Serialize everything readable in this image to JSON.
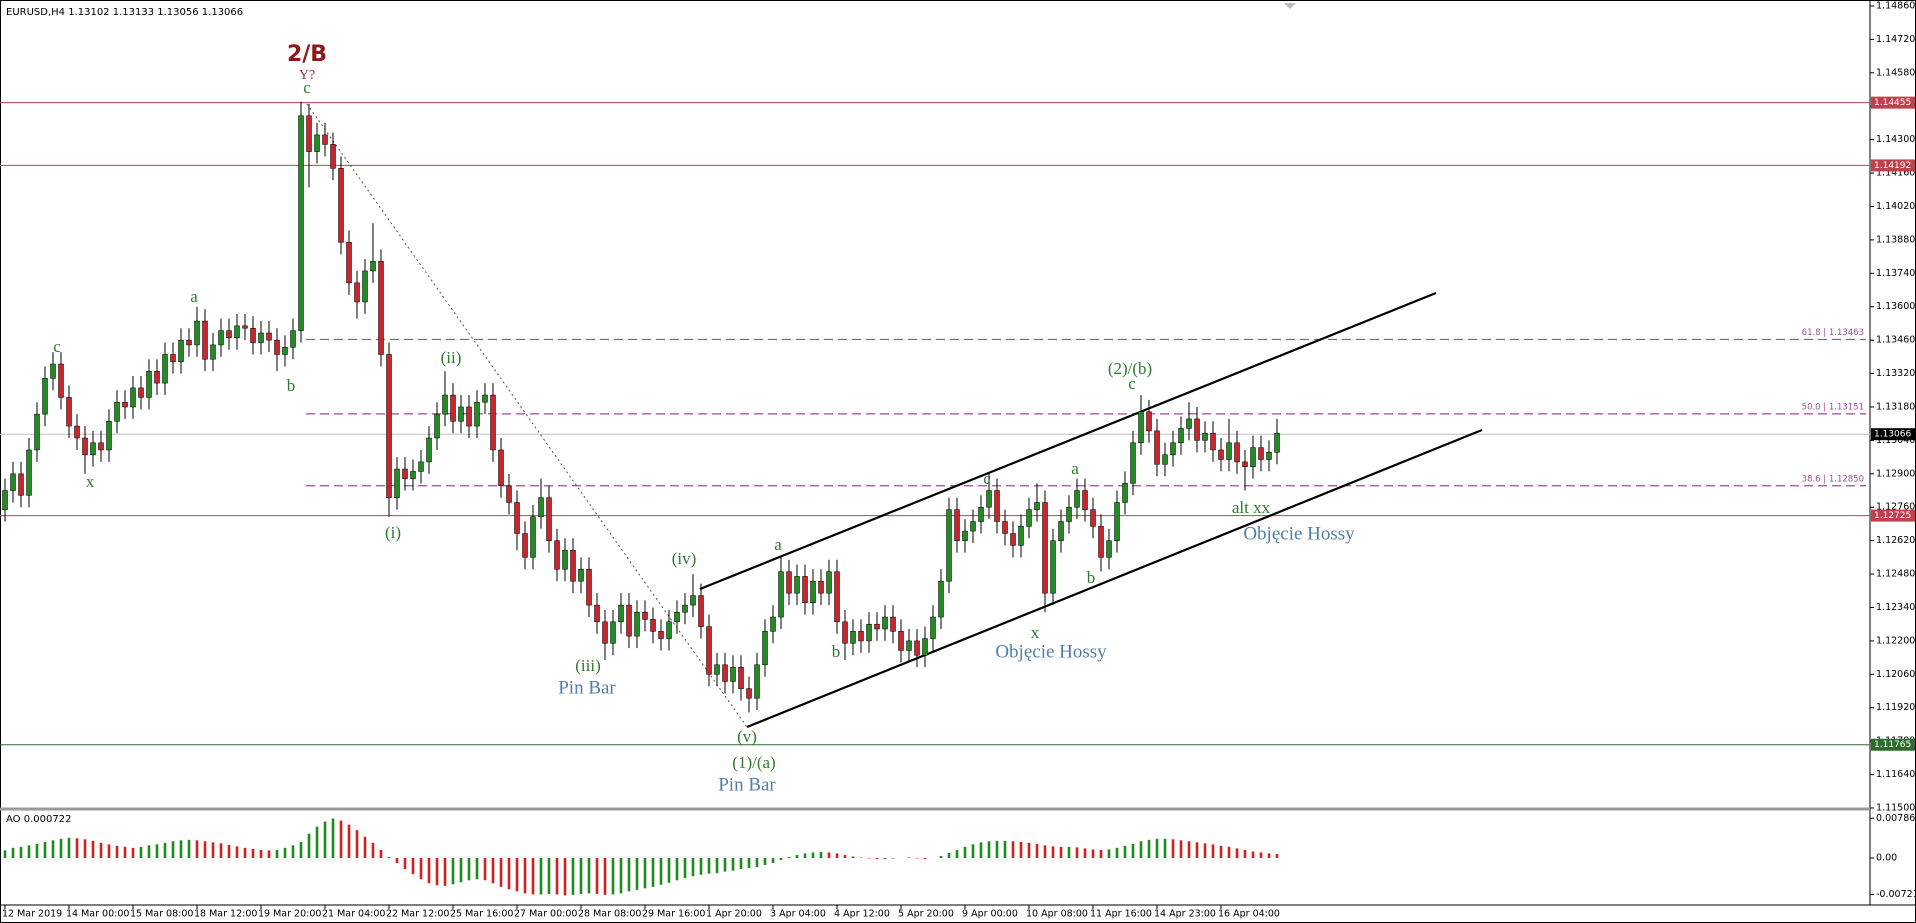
{
  "chart_data": {
    "type": "candlestick",
    "title": "EURUSD,H4  1.13102 1.13133 1.13056 1.13066",
    "up_color": "#228b22",
    "down_color": "#c8262c",
    "categories": [
      "12 Mar 2019",
      null,
      null,
      null,
      null,
      null,
      null,
      null,
      "14 Mar 00:00",
      null,
      null,
      null,
      null,
      null,
      null,
      null,
      "15 Mar 08:00",
      null,
      null,
      null,
      null,
      null,
      null,
      null,
      "18 Mar 12:00",
      null,
      null,
      null,
      null,
      null,
      null,
      null,
      "19 Mar 20:00",
      null,
      null,
      null,
      null,
      null,
      null,
      null,
      "21 Mar 04:00",
      null,
      null,
      null,
      null,
      null,
      null,
      null,
      "22 Mar 12:00",
      null,
      null,
      null,
      null,
      null,
      null,
      null,
      "25 Mar 16:00",
      null,
      null,
      null,
      null,
      null,
      null,
      null,
      "27 Mar 00:00",
      null,
      null,
      null,
      null,
      null,
      null,
      null,
      "28 Mar 08:00",
      null,
      null,
      null,
      null,
      null,
      null,
      null,
      "29 Mar 16:00",
      null,
      null,
      null,
      null,
      null,
      null,
      null,
      "1 Apr 20:00",
      null,
      null,
      null,
      null,
      null,
      null,
      null,
      "3 Apr 04:00",
      null,
      null,
      null,
      null,
      null,
      null,
      null,
      "4 Apr 12:00",
      null,
      null,
      null,
      null,
      null,
      null,
      null,
      "5 Apr 20:00",
      null,
      null,
      null,
      null,
      null,
      null,
      null,
      "9 Apr 00:00",
      null,
      null,
      null,
      null,
      null,
      null,
      null,
      "10 Apr 08:00",
      null,
      null,
      null,
      null,
      null,
      null,
      null,
      "11 Apr 16:00",
      null,
      null,
      null,
      null,
      null,
      null,
      null,
      "14 Apr 23:00",
      null,
      null,
      null,
      null,
      null,
      null,
      null,
      "16 Apr 04:00",
      null,
      null,
      null,
      null,
      null,
      null,
      null
    ],
    "open": [
      1.1275,
      1.1283,
      1.129,
      1.1281,
      1.13,
      1.1315,
      1.133,
      1.1336,
      1.1322,
      1.131,
      1.1305,
      1.1298,
      1.1303,
      1.13,
      1.1312,
      1.132,
      1.1318,
      1.1326,
      1.1322,
      1.1333,
      1.1328,
      1.134,
      1.1337,
      1.1346,
      1.1344,
      1.1354,
      1.1338,
      1.1344,
      1.135,
      1.1347,
      1.1352,
      1.1351,
      1.1345,
      1.1349,
      1.1346,
      1.134,
      1.1343,
      1.135,
      1.144,
      1.1425,
      1.1432,
      1.1428,
      1.1418,
      1.1387,
      1.137,
      1.1362,
      1.1375,
      1.1379,
      1.134,
      1.128,
      1.1292,
      1.1288,
      1.1291,
      1.1295,
      1.1305,
      1.1315,
      1.1323,
      1.1312,
      1.1318,
      1.131,
      1.132,
      1.1323,
      1.13,
      1.1285,
      1.1278,
      1.1265,
      1.1255,
      1.1272,
      1.128,
      1.1262,
      1.125,
      1.1258,
      1.1245,
      1.125,
      1.1235,
      1.1228,
      1.1219,
      1.1228,
      1.1235,
      1.1222,
      1.1232,
      1.1229,
      1.1224,
      1.1221,
      1.1228,
      1.1232,
      1.1235,
      1.1239,
      1.1226,
      1.1206,
      1.121,
      1.1203,
      1.1209,
      1.12,
      1.1196,
      1.121,
      1.1224,
      1.123,
      1.1249,
      1.124,
      1.1247,
      1.1236,
      1.1245,
      1.124,
      1.1249,
      1.1228,
      1.1219,
      1.1224,
      1.122,
      1.1227,
      1.1225,
      1.123,
      1.1224,
      1.1216,
      1.122,
      1.1214,
      1.1221,
      1.123,
      1.1245,
      1.1275,
      1.1262,
      1.1266,
      1.127,
      1.1276,
      1.1283,
      1.127,
      1.1265,
      1.126,
      1.1268,
      1.1275,
      1.1278,
      1.124,
      1.1262,
      1.127,
      1.1276,
      1.1283,
      1.1275,
      1.1268,
      1.1255,
      1.1262,
      1.1278,
      1.1286,
      1.1303,
      1.1316,
      1.1308,
      1.1294,
      1.1298,
      1.1303,
      1.1309,
      1.1313,
      1.1304,
      1.1307,
      1.13,
      1.1296,
      1.1303,
      1.1295,
      1.1293,
      1.1301,
      1.1296,
      1.1299
    ],
    "high": [
      1.1288,
      1.1295,
      1.1295,
      1.1305,
      1.132,
      1.1335,
      1.1341,
      1.1341,
      1.1327,
      1.1315,
      1.131,
      1.1308,
      1.1308,
      1.1317,
      1.1325,
      1.1325,
      1.1331,
      1.1331,
      1.1338,
      1.1338,
      1.1345,
      1.1345,
      1.1351,
      1.1351,
      1.136,
      1.1359,
      1.1349,
      1.1355,
      1.1355,
      1.1357,
      1.1357,
      1.1356,
      1.1354,
      1.1354,
      1.1351,
      1.1348,
      1.1355,
      1.1446,
      1.1445,
      1.1437,
      1.1437,
      1.1433,
      1.1423,
      1.1392,
      1.1375,
      1.138,
      1.1395,
      1.1384,
      1.1345,
      1.1297,
      1.1297,
      1.1296,
      1.13,
      1.131,
      1.132,
      1.1333,
      1.1328,
      1.1323,
      1.1323,
      1.1325,
      1.1328,
      1.1328,
      1.1305,
      1.129,
      1.1283,
      1.127,
      1.1277,
      1.1288,
      1.1285,
      1.1267,
      1.1263,
      1.1263,
      1.1255,
      1.1255,
      1.124,
      1.1233,
      1.1233,
      1.124,
      1.124,
      1.1237,
      1.1237,
      1.1234,
      1.1229,
      1.1233,
      1.1237,
      1.124,
      1.1248,
      1.1244,
      1.1231,
      1.1215,
      1.1215,
      1.1214,
      1.1214,
      1.1205,
      1.1215,
      1.1229,
      1.1235,
      1.1255,
      1.1254,
      1.1252,
      1.1252,
      1.125,
      1.125,
      1.1254,
      1.1254,
      1.1233,
      1.1229,
      1.1229,
      1.1232,
      1.1232,
      1.1235,
      1.1235,
      1.1229,
      1.1225,
      1.1225,
      1.1226,
      1.1235,
      1.125,
      1.128,
      1.128,
      1.1271,
      1.1275,
      1.1281,
      1.129,
      1.1288,
      1.1275,
      1.127,
      1.1273,
      1.128,
      1.1286,
      1.1283,
      1.1267,
      1.1275,
      1.1281,
      1.1288,
      1.1288,
      1.128,
      1.1273,
      1.1267,
      1.1283,
      1.1291,
      1.1308,
      1.1323,
      1.1321,
      1.1313,
      1.1303,
      1.1308,
      1.1314,
      1.132,
      1.1318,
      1.1312,
      1.1312,
      1.1305,
      1.1313,
      1.1308,
      1.13,
      1.1306,
      1.1306,
      1.1304,
      1.1313
    ],
    "low": [
      1.127,
      1.1278,
      1.1276,
      1.1276,
      1.1295,
      1.131,
      1.1325,
      1.1317,
      1.1305,
      1.13,
      1.129,
      1.1293,
      1.1295,
      1.1295,
      1.1307,
      1.1313,
      1.1313,
      1.1317,
      1.1317,
      1.1323,
      1.1323,
      1.1332,
      1.1332,
      1.1339,
      1.1339,
      1.1333,
      1.1333,
      1.1339,
      1.1342,
      1.1342,
      1.1346,
      1.134,
      1.134,
      1.1341,
      1.1333,
      1.1335,
      1.1338,
      1.1345,
      1.141,
      1.142,
      1.1423,
      1.1413,
      1.1382,
      1.1365,
      1.1355,
      1.1357,
      1.137,
      1.1335,
      1.1272,
      1.1275,
      1.1283,
      1.1283,
      1.1286,
      1.129,
      1.13,
      1.131,
      1.1307,
      1.1307,
      1.1305,
      1.1305,
      1.1315,
      1.1295,
      1.128,
      1.1273,
      1.1258,
      1.125,
      1.125,
      1.1267,
      1.1257,
      1.1245,
      1.1245,
      1.124,
      1.124,
      1.123,
      1.1223,
      1.1212,
      1.1214,
      1.1223,
      1.1217,
      1.1217,
      1.1224,
      1.1219,
      1.1216,
      1.1216,
      1.1223,
      1.1227,
      1.123,
      1.1221,
      1.1201,
      1.1201,
      1.1198,
      1.1198,
      1.1195,
      1.119,
      1.1191,
      1.1205,
      1.1219,
      1.1225,
      1.1235,
      1.1235,
      1.1231,
      1.1231,
      1.1235,
      1.1235,
      1.1223,
      1.1212,
      1.1214,
      1.1215,
      1.1215,
      1.122,
      1.122,
      1.1219,
      1.1211,
      1.1211,
      1.1209,
      1.1209,
      1.1216,
      1.1225,
      1.124,
      1.1257,
      1.1257,
      1.1261,
      1.1265,
      1.1271,
      1.1265,
      1.126,
      1.1255,
      1.1255,
      1.1263,
      1.127,
      1.1232,
      1.1235,
      1.1257,
      1.1265,
      1.1271,
      1.127,
      1.1263,
      1.1249,
      1.125,
      1.1257,
      1.1273,
      1.1281,
      1.1298,
      1.1303,
      1.1289,
      1.1289,
      1.1293,
      1.1298,
      1.1304,
      1.1299,
      1.1299,
      1.1295,
      1.1291,
      1.1291,
      1.129,
      1.1283,
      1.1288,
      1.1291,
      1.1291,
      1.1294
    ],
    "close": [
      1.1283,
      1.129,
      1.1281,
      1.13,
      1.1315,
      1.133,
      1.1336,
      1.1322,
      1.131,
      1.1305,
      1.1298,
      1.1303,
      1.13,
      1.1312,
      1.132,
      1.1318,
      1.1326,
      1.1322,
      1.1333,
      1.1328,
      1.134,
      1.1337,
      1.1346,
      1.1344,
      1.1354,
      1.1338,
      1.1344,
      1.135,
      1.1347,
      1.1352,
      1.1351,
      1.1345,
      1.1349,
      1.1346,
      1.134,
      1.1343,
      1.135,
      1.144,
      1.1425,
      1.1432,
      1.1428,
      1.1418,
      1.1387,
      1.137,
      1.1362,
      1.1375,
      1.1379,
      1.134,
      1.128,
      1.1292,
      1.1288,
      1.1291,
      1.1295,
      1.1305,
      1.1315,
      1.1323,
      1.1312,
      1.1318,
      1.131,
      1.132,
      1.1323,
      1.13,
      1.1285,
      1.1278,
      1.1265,
      1.1255,
      1.1272,
      1.128,
      1.1262,
      1.125,
      1.1258,
      1.1245,
      1.125,
      1.1235,
      1.1228,
      1.1219,
      1.1228,
      1.1235,
      1.1222,
      1.1232,
      1.1229,
      1.1224,
      1.1221,
      1.1228,
      1.1232,
      1.1235,
      1.1239,
      1.1226,
      1.1206,
      1.121,
      1.1203,
      1.1209,
      1.12,
      1.1196,
      1.121,
      1.1224,
      1.123,
      1.1249,
      1.124,
      1.1247,
      1.1236,
      1.1245,
      1.124,
      1.1249,
      1.1228,
      1.1219,
      1.1224,
      1.122,
      1.1227,
      1.1225,
      1.123,
      1.1224,
      1.1216,
      1.122,
      1.1214,
      1.1221,
      1.123,
      1.1245,
      1.1275,
      1.1262,
      1.1266,
      1.127,
      1.1276,
      1.1283,
      1.127,
      1.1265,
      1.126,
      1.1268,
      1.1275,
      1.1278,
      1.124,
      1.1262,
      1.127,
      1.1276,
      1.1283,
      1.1275,
      1.1268,
      1.1255,
      1.1262,
      1.1278,
      1.1286,
      1.1303,
      1.1316,
      1.1308,
      1.1294,
      1.1298,
      1.1303,
      1.1309,
      1.1313,
      1.1304,
      1.1307,
      1.13,
      1.1296,
      1.1303,
      1.1295,
      1.1293,
      1.1301,
      1.1296,
      1.1299,
      1.1307
    ],
    "ylim": [
      1.115,
      1.14885
    ],
    "yticks": [
      {
        "value": 1.1486,
        "label": "1.14860"
      },
      {
        "value": 1.1472,
        "label": "1.14720"
      },
      {
        "value": 1.1458,
        "label": "1.14580"
      },
      {
        "value": 1.1444,
        "label": "1.14440"
      },
      {
        "value": 1.143,
        "label": "1.14300"
      },
      {
        "value": 1.1416,
        "label": "1.14160"
      },
      {
        "value": 1.1402,
        "label": "1.14020"
      },
      {
        "value": 1.1388,
        "label": "1.13880"
      },
      {
        "value": 1.1374,
        "label": "1.13740"
      },
      {
        "value": 1.136,
        "label": "1.13600"
      },
      {
        "value": 1.1346,
        "label": "1.13460"
      },
      {
        "value": 1.1332,
        "label": "1.13320"
      },
      {
        "value": 1.1318,
        "label": "1.13180"
      },
      {
        "value": 1.1304,
        "label": "1.13040"
      },
      {
        "value": 1.129,
        "label": "1.12900"
      },
      {
        "value": 1.1276,
        "label": "1.12760"
      },
      {
        "value": 1.1262,
        "label": "1.12620"
      },
      {
        "value": 1.1248,
        "label": "1.12480"
      },
      {
        "value": 1.1234,
        "label": "1.12340"
      },
      {
        "value": 1.122,
        "label": "1.12200"
      },
      {
        "value": 1.1206,
        "label": "1.12060"
      },
      {
        "value": 1.1192,
        "label": "1.11920"
      },
      {
        "value": 1.1178,
        "label": "1.11780"
      },
      {
        "value": 1.1164,
        "label": "1.11640"
      },
      {
        "value": 1.115,
        "label": "1.11500"
      }
    ],
    "price_levels": [
      {
        "value": 1.14455,
        "color": "#c0404d"
      },
      {
        "value": 1.14192,
        "color": "#c0404d"
      },
      {
        "value": 1.12725,
        "color": "#c0404d"
      },
      {
        "value": 1.11765,
        "color": "#2e6b2e"
      }
    ],
    "current_price": {
      "value": 1.13066,
      "color": "#000000"
    },
    "fib_levels": [
      {
        "value": 1.13463,
        "label": "61.8 | 1.13463"
      },
      {
        "value": 1.13151,
        "label": "50.0 | 1.13151"
      },
      {
        "value": 1.1285,
        "label": "38.6 | 1.12850"
      }
    ],
    "fib_color": "#9b4f96",
    "annotations": [
      "2/B",
      "Y?",
      "c",
      "a",
      "c",
      "b",
      "x",
      "(ii)",
      "(i)",
      "(iii)",
      "Pin Bar",
      "(iv)",
      "a",
      "b",
      "(v)",
      "(1)/(a)",
      "Pin Bar",
      "c",
      "x",
      "Objęcie Hossy",
      "a",
      "b",
      "(2)/(b)",
      "c",
      "alt xx",
      "Objęcie Hossy"
    ],
    "indicator": {
      "type": "bar",
      "title": "AO 0.000722",
      "up_color": "#1f8a1f",
      "down_color": "#d42020",
      "values": [
        0.0015,
        0.002,
        0.0022,
        0.0025,
        0.0028,
        0.0032,
        0.0035,
        0.0038,
        0.004,
        0.0039,
        0.0037,
        0.0034,
        0.003,
        0.0027,
        0.0024,
        0.0022,
        0.002,
        0.0022,
        0.0025,
        0.0027,
        0.003,
        0.0033,
        0.0035,
        0.0036,
        0.0035,
        0.0033,
        0.0031,
        0.0029,
        0.0026,
        0.0023,
        0.002,
        0.0018,
        0.0016,
        0.0015,
        0.0016,
        0.002,
        0.0025,
        0.0032,
        0.0048,
        0.0062,
        0.0072,
        0.0078,
        0.0074,
        0.0066,
        0.0055,
        0.0042,
        0.003,
        0.0016,
        0.0002,
        -0.001,
        -0.0022,
        -0.0032,
        -0.0042,
        -0.005,
        -0.0054,
        -0.0055,
        -0.0052,
        -0.0048,
        -0.0044,
        -0.0042,
        -0.0044,
        -0.005,
        -0.0057,
        -0.0062,
        -0.0066,
        -0.007,
        -0.0072,
        -0.0072,
        -0.0071,
        -0.0072,
        -0.0074,
        -0.0073,
        -0.0071,
        -0.007,
        -0.0071,
        -0.0073,
        -0.0072,
        -0.007,
        -0.0066,
        -0.0063,
        -0.006,
        -0.0057,
        -0.0053,
        -0.0049,
        -0.0044,
        -0.004,
        -0.0036,
        -0.0033,
        -0.0031,
        -0.003,
        -0.0027,
        -0.0025,
        -0.0022,
        -0.002,
        -0.0018,
        -0.0014,
        -0.001,
        -0.0004,
        0.0002,
        0.0006,
        0.0009,
        0.0011,
        0.0012,
        0.0011,
        0.0009,
        0.0006,
        0.0003,
        0.0001,
        -0.0001,
        -0.0002,
        -0.0002,
        -0.0001,
        0,
        0.0001,
        -0.0001,
        -0.0002,
        0,
        0.0004,
        0.001,
        0.0016,
        0.0022,
        0.0027,
        0.0031,
        0.0033,
        0.0034,
        0.0034,
        0.0033,
        0.0032,
        0.003,
        0.0028,
        0.0025,
        0.0023,
        0.0022,
        0.0022,
        0.0021,
        0.0019,
        0.0017,
        0.0016,
        0.0017,
        0.002,
        0.0024,
        0.0028,
        0.0033,
        0.0036,
        0.0038,
        0.0038,
        0.0037,
        0.0035,
        0.0033,
        0.0031,
        0.0029,
        0.0027,
        0.0024,
        0.0022,
        0.0019,
        0.0016,
        0.0013,
        0.0011,
        0.0009,
        0.0008
      ],
      "ylim": [
        -0.0091,
        0.0091
      ],
      "yticks": [
        0.007863,
        {
          "value": 0,
          "label": "0.00"
        },
        -0.007219
      ]
    }
  }
}
